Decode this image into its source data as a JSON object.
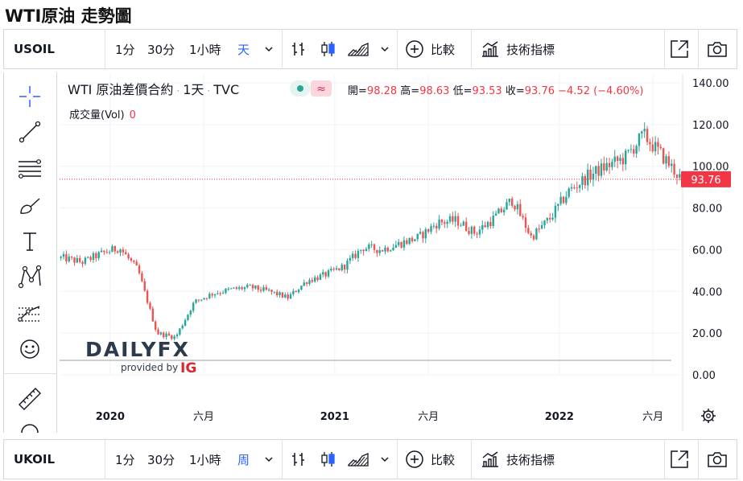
{
  "page": {
    "title": "WTI原油 走勢圖"
  },
  "top_toolbar": {
    "symbol": "USOIL",
    "intervals": [
      "1分",
      "30分",
      "1小時",
      "天"
    ],
    "active_interval": "天",
    "compare_label": "比較",
    "indicators_label": "技術指標"
  },
  "bottom_toolbar": {
    "symbol": "UKOIL",
    "intervals": [
      "1分",
      "30分",
      "1小時",
      "周"
    ],
    "active_interval": "周",
    "compare_label": "比較",
    "indicators_label": "技術指標"
  },
  "legend": {
    "title": "WTI 原油差價合約",
    "interval": "1天",
    "source": "TVC",
    "open_label": "開",
    "open": "98.28",
    "high_label": "高",
    "high": "98.63",
    "low_label": "低",
    "low": "93.53",
    "close_label": "收",
    "close": "93.76",
    "change": "−4.52 (−4.60%)",
    "volume_label": "成交量(Vol)",
    "volume_value": "0"
  },
  "watermark": {
    "brand": "DAILYFX",
    "provided": "provided by",
    "provider": "IG"
  },
  "colors": {
    "up": "#26a69a",
    "down": "#ef5350",
    "accent": "#2962ff",
    "last_price": "#f23645"
  },
  "chart_data": {
    "type": "candlestick",
    "title": "",
    "xlabel": "",
    "ylabel": "",
    "ylim": [
      0,
      140
    ],
    "y_ticks": [
      "140.00",
      "120.00",
      "100.00",
      "80.00",
      "60.00",
      "40.00",
      "20.00",
      "0.00"
    ],
    "y_tick_values": [
      140,
      120,
      100,
      80,
      60,
      40,
      20,
      0
    ],
    "x_tick_labels": [
      "2020",
      "六月",
      "2021",
      "六月",
      "2022",
      "六月"
    ],
    "x_tick_dates": [
      "2020-01",
      "2020-06",
      "2021-01",
      "2021-06",
      "2022-01",
      "2022-06"
    ],
    "x_range": [
      "2019-10",
      "2022-07"
    ],
    "last_price": 93.76,
    "last_price_label": "93.76",
    "series": [
      {
        "dates": [
          "2019-10",
          "2019-11",
          "2019-12",
          "2020-01",
          "2020-02",
          "2020-03",
          "2020-04",
          "2020-05",
          "2020-06",
          "2020-07",
          "2020-08",
          "2020-09",
          "2020-10",
          "2020-11",
          "2020-12",
          "2021-01",
          "2021-02",
          "2021-03",
          "2021-04",
          "2021-05",
          "2021-06",
          "2021-07",
          "2021-08",
          "2021-09",
          "2021-10",
          "2021-11",
          "2021-12",
          "2022-01",
          "2022-02",
          "2022-03",
          "2022-04",
          "2022-05",
          "2022-06",
          "2022-07"
        ],
        "close": [
          56,
          54,
          58,
          61,
          50,
          20,
          18,
          35,
          39,
          41,
          42,
          40,
          37,
          45,
          48,
          52,
          61,
          60,
          63,
          66,
          73,
          74,
          68,
          75,
          84,
          66,
          75,
          88,
          95,
          100,
          104,
          115,
          105,
          94
        ]
      }
    ]
  }
}
